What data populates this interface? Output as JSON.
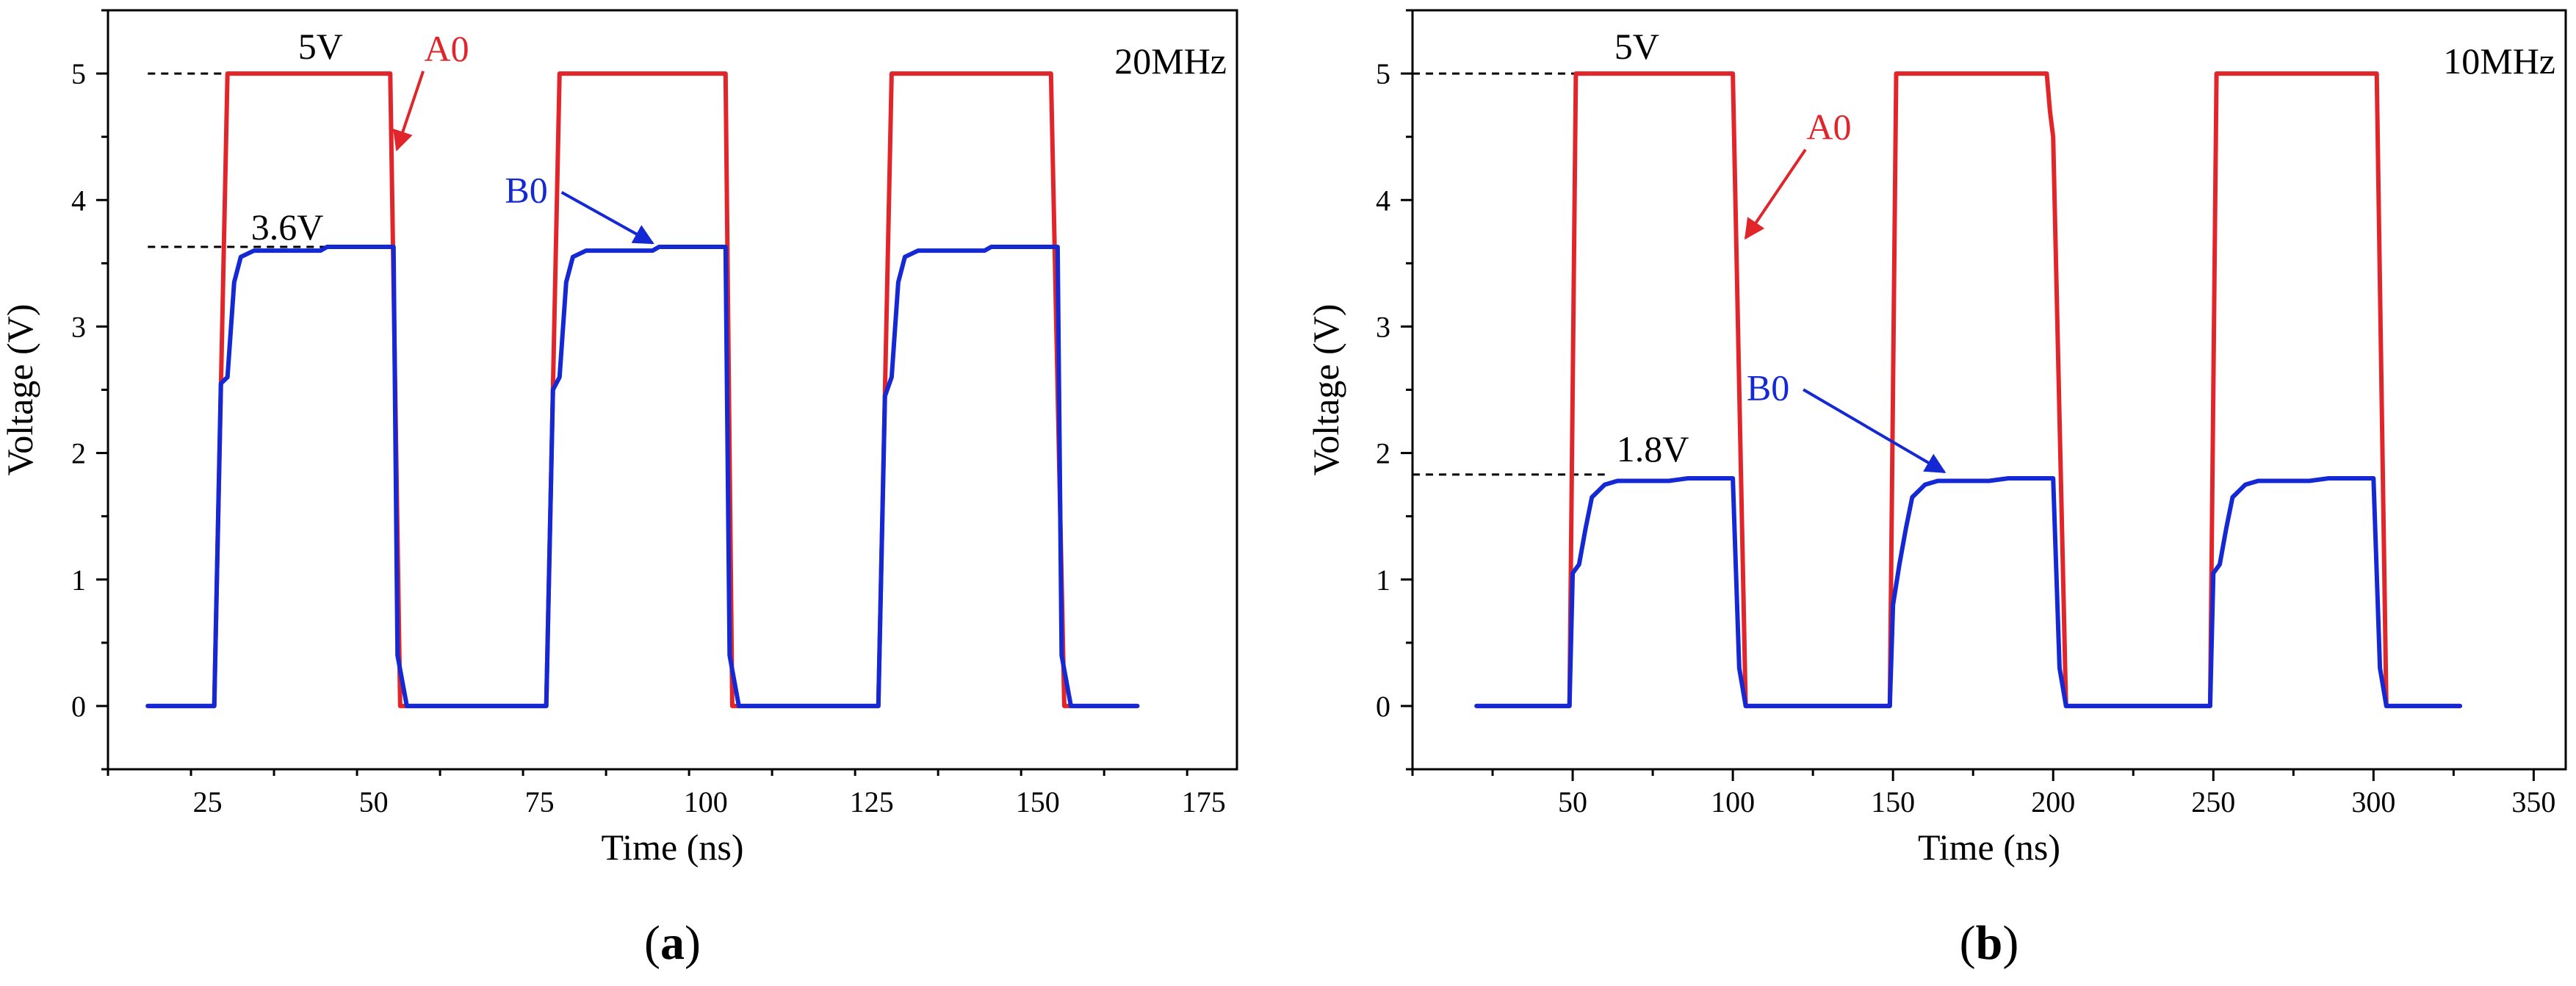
{
  "chart_data": [
    {
      "type": "line",
      "panel_label": "a",
      "xlabel": "Time (ns)",
      "ylabel": "Voltage (V)",
      "xlim": [
        10,
        180
      ],
      "ylim": [
        -0.5,
        5.5
      ],
      "xticks": [
        25,
        50,
        75,
        100,
        125,
        150,
        175
      ],
      "yticks": [
        0,
        1,
        2,
        3,
        4,
        5
      ],
      "frequency_label": "20MHz",
      "colors": {
        "A0": "#e0262b",
        "B0": "#1428d4"
      },
      "series": [
        {
          "name": "A0",
          "x": [
            16,
            26,
            28,
            52.5,
            54,
            76,
            78,
            103,
            104,
            126,
            128,
            152,
            154,
            165
          ],
          "y": [
            0,
            0,
            5,
            5,
            0,
            0,
            5,
            5,
            0,
            0,
            5,
            5,
            0,
            0
          ]
        },
        {
          "name": "B0",
          "x": [
            16,
            26,
            27,
            28,
            29,
            30,
            32,
            34,
            38,
            42,
            43,
            48,
            53,
            53.6,
            55,
            76,
            77,
            78,
            79,
            80,
            82,
            84,
            88,
            92,
            93,
            98,
            103,
            103.6,
            105,
            126,
            127,
            128,
            129,
            130,
            132,
            134,
            138,
            142,
            143,
            148,
            153,
            153.6,
            155,
            165
          ],
          "y": [
            0,
            0,
            2.55,
            2.6,
            3.35,
            3.55,
            3.6,
            3.6,
            3.6,
            3.6,
            3.63,
            3.63,
            3.63,
            0.4,
            0,
            0,
            2.5,
            2.6,
            3.35,
            3.55,
            3.6,
            3.6,
            3.6,
            3.6,
            3.63,
            3.63,
            3.63,
            0.4,
            0,
            0,
            2.45,
            2.6,
            3.35,
            3.55,
            3.6,
            3.6,
            3.6,
            3.6,
            3.63,
            3.63,
            3.63,
            0.4,
            0,
            0
          ]
        }
      ],
      "reference_lines": [
        {
          "y": 5,
          "x_start": 16,
          "x_end": 28,
          "label": "5V"
        },
        {
          "y": 3.63,
          "x_start": 16,
          "x_end": 43,
          "label": "3.6V"
        }
      ],
      "annotations": [
        {
          "text": "A0",
          "series": "A0",
          "x": 61,
          "y": 5.1,
          "arrow_to": [
            53.5,
            4.4
          ]
        },
        {
          "text": "B0",
          "series": "B0",
          "x": 73,
          "y": 3.98,
          "arrow_to": [
            92,
            3.66
          ]
        }
      ]
    },
    {
      "type": "line",
      "panel_label": "b",
      "xlabel": "Time (ns)",
      "ylabel": "Voltage (V)",
      "xlim": [
        0,
        360
      ],
      "ylim": [
        -0.5,
        5.5
      ],
      "xticks": [
        50,
        100,
        150,
        200,
        250,
        300,
        350
      ],
      "yticks": [
        0,
        1,
        2,
        3,
        4,
        5
      ],
      "frequency_label": "10MHz",
      "colors": {
        "A0": "#e0262b",
        "B0": "#1428d4"
      },
      "series": [
        {
          "name": "A0",
          "x": [
            20,
            49,
            51,
            100,
            104,
            149,
            151,
            198,
            199,
            200,
            204,
            249,
            251,
            301,
            304,
            327
          ],
          "y": [
            0,
            0,
            5,
            5,
            0,
            0,
            5,
            5,
            4.7,
            4.5,
            0,
            0,
            5,
            5,
            0,
            0
          ]
        },
        {
          "name": "B0",
          "x": [
            20,
            49,
            50,
            52,
            54,
            56,
            60,
            64,
            70,
            80,
            86,
            90,
            100,
            102,
            104,
            149,
            150,
            152,
            154,
            156,
            160,
            164,
            170,
            180,
            186,
            190,
            200,
            202,
            204,
            249,
            250,
            252,
            254,
            256,
            260,
            264,
            270,
            280,
            286,
            290,
            300,
            302,
            304,
            327
          ],
          "y": [
            0,
            0,
            1.05,
            1.12,
            1.4,
            1.65,
            1.75,
            1.78,
            1.78,
            1.78,
            1.8,
            1.8,
            1.8,
            0.3,
            0,
            0,
            0.8,
            1.12,
            1.4,
            1.65,
            1.75,
            1.78,
            1.78,
            1.78,
            1.8,
            1.8,
            1.8,
            0.3,
            0,
            0,
            1.05,
            1.12,
            1.4,
            1.65,
            1.75,
            1.78,
            1.78,
            1.78,
            1.8,
            1.8,
            1.8,
            0.3,
            0,
            0
          ]
        }
      ],
      "reference_lines": [
        {
          "y": 5,
          "x_start": 0,
          "x_end": 51,
          "label": "5V"
        },
        {
          "y": 1.83,
          "x_start": 0,
          "x_end": 60,
          "label": "1.8V"
        }
      ],
      "annotations": [
        {
          "text": "A0",
          "series": "A0",
          "x": 130,
          "y": 4.48,
          "arrow_to": [
            104,
            3.7
          ]
        },
        {
          "text": "B0",
          "series": "B0",
          "x": 111,
          "y": 2.42,
          "arrow_to": [
            166,
            1.85
          ]
        }
      ]
    }
  ]
}
